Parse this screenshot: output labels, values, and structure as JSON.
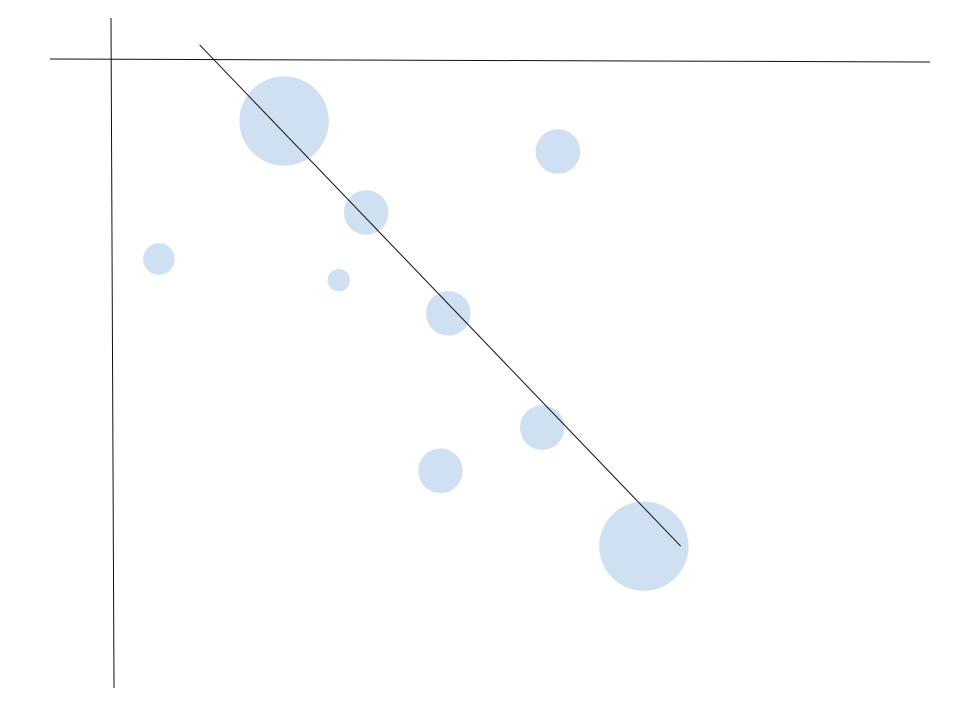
{
  "chart_data": {
    "type": "scatter",
    "variant": "bubble",
    "title": "",
    "xlabel": "",
    "ylabel": "",
    "xlim": [
      -0.5,
      8.8
    ],
    "ylim": [
      -6.8,
      0.4
    ],
    "grid": false,
    "legend": "none",
    "colors": {
      "bubble": "#cfe0f2",
      "line": "#111111",
      "axis": "#111111"
    },
    "series": [
      {
        "points": [
          {
            "x": 0.6,
            "y": -2.35,
            "size": 1
          },
          {
            "x": 2.2,
            "y": -0.72,
            "size": 8
          },
          {
            "x": 2.9,
            "y": -2.6,
            "size": 0.5
          },
          {
            "x": 3.25,
            "y": -1.8,
            "size": 2
          },
          {
            "x": 4.3,
            "y": -2.99,
            "size": 2
          },
          {
            "x": 4.2,
            "y": -4.85,
            "size": 2
          },
          {
            "x": 5.5,
            "y": -4.34,
            "size": 2
          },
          {
            "x": 5.7,
            "y": -1.08,
            "size": 2
          },
          {
            "x": 6.8,
            "y": -5.74,
            "size": 8
          }
        ]
      }
    ],
    "trendline": {
      "start": {
        "x": 1.12,
        "y": 0.18
      },
      "end": {
        "x": 7.27,
        "y": -5.74
      }
    }
  }
}
